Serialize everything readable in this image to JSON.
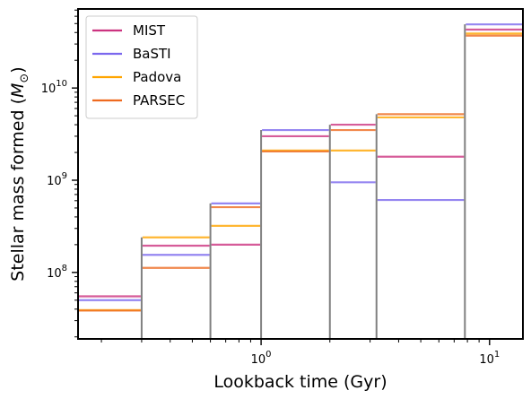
{
  "chart_data": {
    "type": "line",
    "title": "",
    "xlabel": "Lookback time (Gyr)",
    "ylabel": "Stellar mass formed (M⊙)",
    "ylabel_main": "Stellar mass formed (",
    "ylabel_symbol": "M",
    "ylabel_sub": "⊙",
    "ylabel_close": ")",
    "x_scale": "log",
    "y_scale": "log",
    "xlim": [
      0.158,
      14.0
    ],
    "ylim": [
      19000000.0,
      72000000000.0
    ],
    "grid": false,
    "legend_position": "top-left",
    "x_ticks": [
      {
        "base": "10",
        "exp": "0",
        "value": 1
      },
      {
        "base": "10",
        "exp": "1",
        "value": 10
      }
    ],
    "y_ticks": [
      {
        "base": "10",
        "exp": "8",
        "value": 100000000.0
      },
      {
        "base": "10",
        "exp": "9",
        "value": 1000000000.0
      },
      {
        "base": "10",
        "exp": "10",
        "value": 10000000000.0
      }
    ],
    "bin_edges": [
      0.158,
      0.3,
      0.6,
      1.0,
      2.0,
      3.2,
      7.8,
      14.0
    ],
    "series": [
      {
        "name": "MIST",
        "color": "#cc3380",
        "values": [
          55000000.0,
          195000000.0,
          200000000.0,
          3000000000.0,
          4000000000.0,
          1800000000.0,
          43000000000.0
        ]
      },
      {
        "name": "BaSTI",
        "color": "#7b68ee",
        "values": [
          50000000.0,
          155000000.0,
          560000000.0,
          3500000000.0,
          950000000.0,
          610000000.0,
          49000000000.0
        ]
      },
      {
        "name": "Padova",
        "color": "#ffa500",
        "values": [
          39000000.0,
          240000000.0,
          320000000.0,
          2100000000.0,
          2100000000.0,
          4800000000.0,
          39000000000.0
        ]
      },
      {
        "name": "PARSEC",
        "color": "#ee6a1f",
        "values": [
          38500000.0,
          112000000.0,
          510000000.0,
          2050000000.0,
          3500000000.0,
          5200000000.0,
          37000000000.0
        ]
      }
    ],
    "edge_color": "#808080"
  }
}
